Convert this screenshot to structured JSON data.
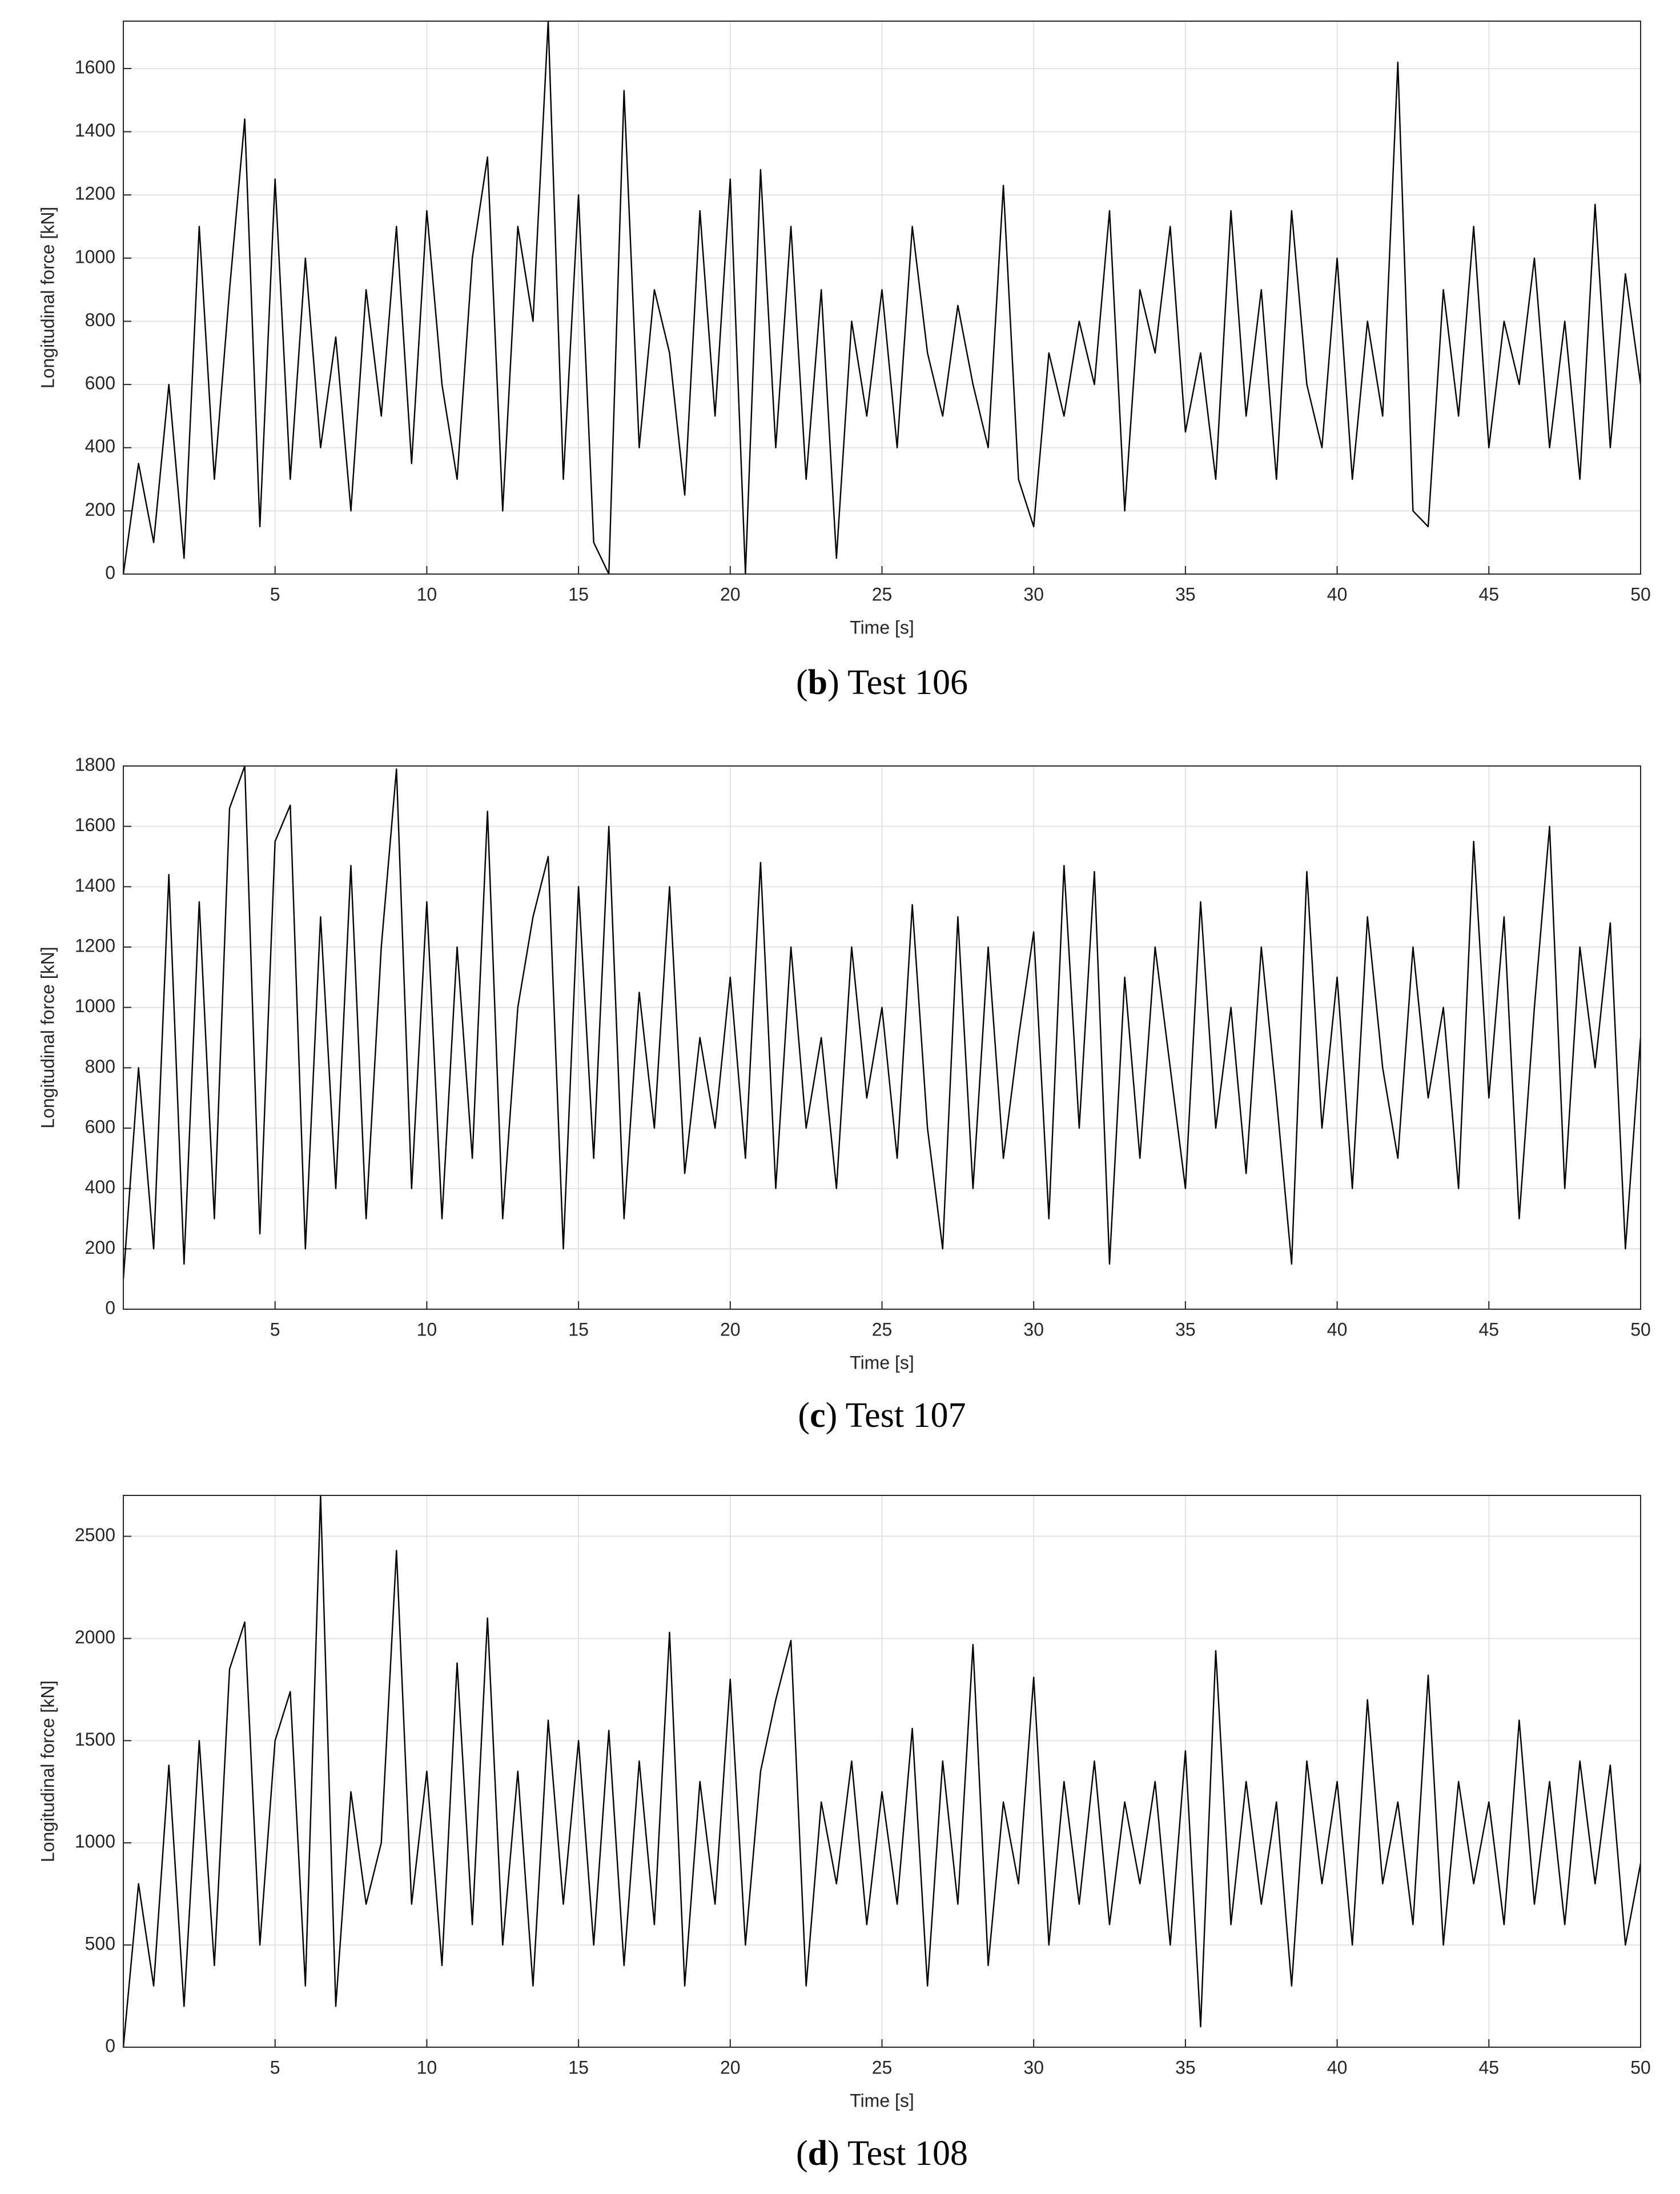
{
  "chart_data": [
    {
      "type": "line",
      "caption": [
        "(",
        "b",
        ") Test 106"
      ],
      "xlabel": "Time [s]",
      "ylabel": "Longitudinal force [kN]",
      "grid": true,
      "xlim": [
        0,
        50
      ],
      "xticks": [
        5,
        10,
        15,
        20,
        25,
        30,
        35,
        40,
        45,
        50
      ],
      "ylim": [
        0,
        1750
      ],
      "yticks": [
        0,
        200,
        400,
        600,
        800,
        1000,
        1200,
        1400,
        1600
      ],
      "x": [
        0,
        0.5,
        1,
        1.5,
        2,
        2.5,
        3,
        3.5,
        4,
        4.5,
        5,
        5.5,
        6,
        6.5,
        7,
        7.5,
        8,
        8.5,
        9,
        9.5,
        10,
        10.5,
        11,
        11.5,
        12,
        12.5,
        13,
        13.5,
        14,
        14.5,
        15,
        15.5,
        16,
        16.5,
        17,
        17.5,
        18,
        18.5,
        19,
        19.5,
        20,
        20.5,
        21,
        21.5,
        22,
        22.5,
        23,
        23.5,
        24,
        24.5,
        25,
        25.5,
        26,
        26.5,
        27,
        27.5,
        28,
        28.5,
        29,
        29.5,
        30,
        30.5,
        31,
        31.5,
        32,
        32.5,
        33,
        33.5,
        34,
        34.5,
        35,
        35.5,
        36,
        36.5,
        37,
        37.5,
        38,
        38.5,
        39,
        39.5,
        40,
        40.5,
        41,
        41.5,
        42,
        42.5,
        43,
        43.5,
        44,
        44.5,
        45,
        45.5,
        46,
        46.5,
        47,
        47.5,
        48,
        48.5,
        49,
        49.5,
        50
      ],
      "series": [
        {
          "color": "#000000",
          "values": [
            0,
            350,
            100,
            600,
            50,
            1100,
            300,
            900,
            1440,
            150,
            1250,
            300,
            1000,
            400,
            750,
            200,
            900,
            500,
            1100,
            350,
            1150,
            600,
            300,
            1000,
            1320,
            200,
            1100,
            800,
            1750,
            300,
            1200,
            100,
            0,
            1530,
            400,
            900,
            700,
            250,
            1150,
            500,
            1250,
            0,
            1280,
            400,
            1100,
            300,
            900,
            50,
            800,
            500,
            900,
            400,
            1100,
            700,
            500,
            850,
            600,
            400,
            1230,
            300,
            150,
            700,
            500,
            800,
            600,
            1150,
            200,
            900,
            700,
            1100,
            450,
            700,
            300,
            1150,
            500,
            900,
            300,
            1150,
            600,
            400,
            1000,
            300,
            800,
            500,
            1620,
            200,
            150,
            900,
            500,
            1100,
            400,
            800,
            600,
            1000,
            400,
            800,
            300,
            1170,
            400,
            950,
            600
          ]
        }
      ]
    },
    {
      "type": "line",
      "caption": [
        "(",
        "c",
        ") Test 107"
      ],
      "xlabel": "Time [s]",
      "ylabel": "Longitudinal force [kN]",
      "grid": true,
      "xlim": [
        0,
        50
      ],
      "xticks": [
        5,
        10,
        15,
        20,
        25,
        30,
        35,
        40,
        45,
        50
      ],
      "ylim": [
        0,
        1800
      ],
      "yticks": [
        0,
        200,
        400,
        600,
        800,
        1000,
        1200,
        1400,
        1600,
        1800
      ],
      "x": [
        0,
        0.5,
        1,
        1.5,
        2,
        2.5,
        3,
        3.5,
        4,
        4.5,
        5,
        5.5,
        6,
        6.5,
        7,
        7.5,
        8,
        8.5,
        9,
        9.5,
        10,
        10.5,
        11,
        11.5,
        12,
        12.5,
        13,
        13.5,
        14,
        14.5,
        15,
        15.5,
        16,
        16.5,
        17,
        17.5,
        18,
        18.5,
        19,
        19.5,
        20,
        20.5,
        21,
        21.5,
        22,
        22.5,
        23,
        23.5,
        24,
        24.5,
        25,
        25.5,
        26,
        26.5,
        27,
        27.5,
        28,
        28.5,
        29,
        29.5,
        30,
        30.5,
        31,
        31.5,
        32,
        32.5,
        33,
        33.5,
        34,
        34.5,
        35,
        35.5,
        36,
        36.5,
        37,
        37.5,
        38,
        38.5,
        39,
        39.5,
        40,
        40.5,
        41,
        41.5,
        42,
        42.5,
        43,
        43.5,
        44,
        44.5,
        45,
        45.5,
        46,
        46.5,
        47,
        47.5,
        48,
        48.5,
        49,
        49.5,
        50
      ],
      "series": [
        {
          "color": "#000000",
          "values": [
            100,
            800,
            200,
            1440,
            150,
            1350,
            300,
            1660,
            1800,
            250,
            1550,
            1670,
            200,
            1300,
            400,
            1470,
            300,
            1200,
            1790,
            400,
            1350,
            300,
            1200,
            500,
            1650,
            300,
            1000,
            1300,
            1500,
            200,
            1400,
            500,
            1600,
            300,
            1050,
            600,
            1400,
            450,
            900,
            600,
            1100,
            500,
            1480,
            400,
            1200,
            600,
            900,
            400,
            1200,
            700,
            1000,
            500,
            1340,
            600,
            200,
            1300,
            400,
            1200,
            500,
            900,
            1250,
            300,
            1470,
            600,
            1450,
            150,
            1100,
            500,
            1200,
            800,
            400,
            1350,
            600,
            1000,
            450,
            1200,
            700,
            150,
            1450,
            600,
            1100,
            400,
            1300,
            800,
            500,
            1200,
            700,
            1000,
            400,
            1550,
            700,
            1300,
            300,
            1000,
            1600,
            400,
            1200,
            800,
            1280,
            200,
            900
          ]
        }
      ]
    },
    {
      "type": "line",
      "caption": [
        "(",
        "d",
        ") Test 108"
      ],
      "xlabel": "Time [s]",
      "ylabel": "Longitudinal force [kN]",
      "grid": true,
      "xlim": [
        0,
        50
      ],
      "xticks": [
        5,
        10,
        15,
        20,
        25,
        30,
        35,
        40,
        45,
        50
      ],
      "ylim": [
        0,
        2700
      ],
      "yticks": [
        0,
        500,
        1000,
        1500,
        2000,
        2500
      ],
      "x": [
        0,
        0.5,
        1,
        1.5,
        2,
        2.5,
        3,
        3.5,
        4,
        4.5,
        5,
        5.5,
        6,
        6.5,
        7,
        7.5,
        8,
        8.5,
        9,
        9.5,
        10,
        10.5,
        11,
        11.5,
        12,
        12.5,
        13,
        13.5,
        14,
        14.5,
        15,
        15.5,
        16,
        16.5,
        17,
        17.5,
        18,
        18.5,
        19,
        19.5,
        20,
        20.5,
        21,
        21.5,
        22,
        22.5,
        23,
        23.5,
        24,
        24.5,
        25,
        25.5,
        26,
        26.5,
        27,
        27.5,
        28,
        28.5,
        29,
        29.5,
        30,
        30.5,
        31,
        31.5,
        32,
        32.5,
        33,
        33.5,
        34,
        34.5,
        35,
        35.5,
        36,
        36.5,
        37,
        37.5,
        38,
        38.5,
        39,
        39.5,
        40,
        40.5,
        41,
        41.5,
        42,
        42.5,
        43,
        43.5,
        44,
        44.5,
        45,
        45.5,
        46,
        46.5,
        47,
        47.5,
        48,
        48.5,
        49,
        49.5,
        50
      ],
      "series": [
        {
          "color": "#000000",
          "values": [
            0,
            800,
            300,
            1380,
            200,
            1500,
            400,
            1850,
            2080,
            500,
            1500,
            1740,
            300,
            2700,
            200,
            1250,
            700,
            1000,
            2430,
            700,
            1350,
            400,
            1880,
            600,
            2100,
            500,
            1350,
            300,
            1600,
            700,
            1500,
            500,
            1550,
            400,
            1400,
            600,
            2030,
            300,
            1300,
            700,
            1800,
            500,
            1350,
            1700,
            1990,
            300,
            1200,
            800,
            1400,
            600,
            1250,
            700,
            1560,
            300,
            1400,
            700,
            1970,
            400,
            1200,
            800,
            1810,
            500,
            1300,
            700,
            1400,
            600,
            1200,
            800,
            1300,
            500,
            1450,
            100,
            1940,
            600,
            1300,
            700,
            1200,
            300,
            1400,
            800,
            1300,
            500,
            1700,
            800,
            1200,
            600,
            1820,
            500,
            1300,
            800,
            1200,
            600,
            1600,
            700,
            1300,
            600,
            1400,
            800,
            1380,
            500,
            900
          ]
        }
      ]
    }
  ]
}
